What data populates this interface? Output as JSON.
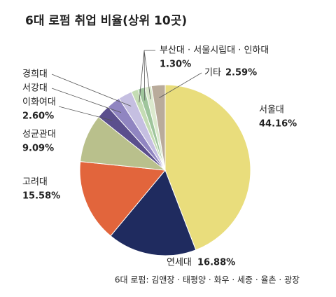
{
  "chart_data": {
    "type": "pie",
    "title": "6대 로펌 취업 비율(상위 10곳)",
    "categories": [
      "서울대",
      "연세대",
      "고려대",
      "성균관대",
      "이화여대",
      "서강대",
      "경희대",
      null,
      null,
      null,
      "기타"
    ],
    "values": [
      44.16,
      16.88,
      15.58,
      9.09,
      2.6,
      2.6,
      2.6,
      1.3,
      1.3,
      1.3,
      2.59
    ],
    "value_labels": [
      "44.16%",
      "16.88%",
      "15.58%",
      "9.09%",
      "2.60%",
      null,
      null,
      "1.30%",
      null,
      null,
      "2.59%"
    ],
    "colors": [
      "#e9dd7c",
      "#1f2b5f",
      "#e2653c",
      "#b9c08c",
      "#5b4f8d",
      "#9085c1",
      "#c5bfe1",
      "#c4dcb4",
      "#9fc59c",
      "#dbe9cd",
      "#b9ab9b"
    ],
    "group_label": "부산대 · 서울시립대 · 인하대",
    "footnote": "6대 로펌: 김앤장 · 태평양 · 화우 · 세종 · 율촌 · 광장"
  }
}
